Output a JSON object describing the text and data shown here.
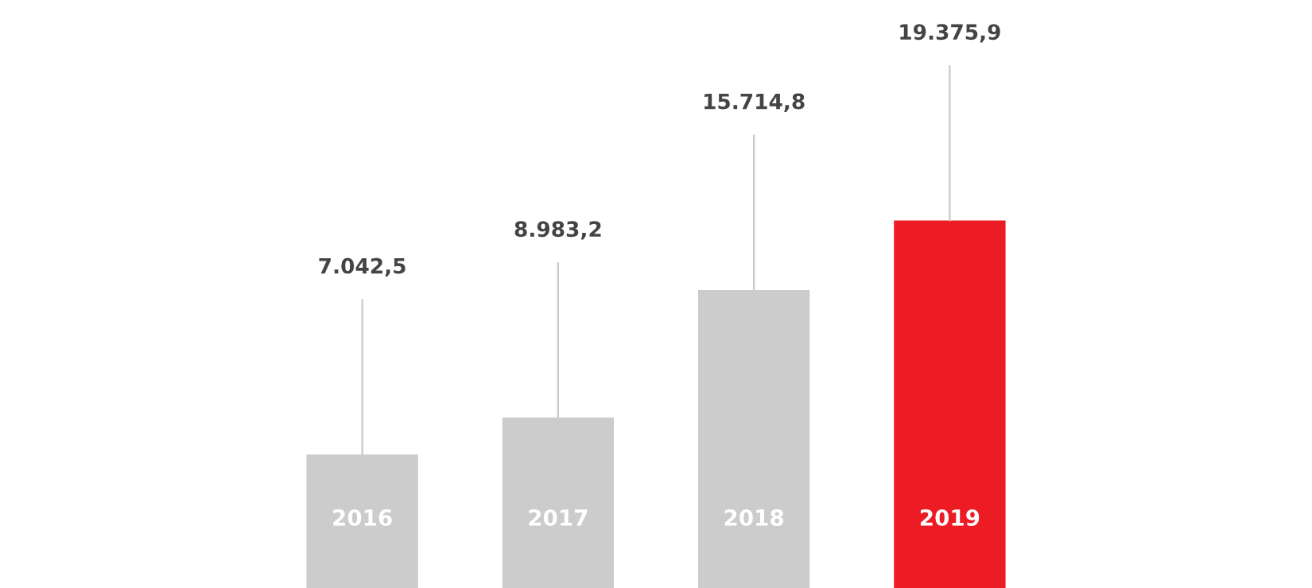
{
  "chart_data": {
    "type": "bar",
    "categories": [
      "2016",
      "2017",
      "2018",
      "2019"
    ],
    "values": [
      7042.5,
      8983.2,
      15714.8,
      19375.9
    ],
    "colors": [
      "#cccccc",
      "#cccccc",
      "#cccccc",
      "#ed1c24"
    ],
    "value_labels": [
      "7.042,5",
      "8.983,2",
      "15.714,8",
      "19.375,9"
    ]
  }
}
